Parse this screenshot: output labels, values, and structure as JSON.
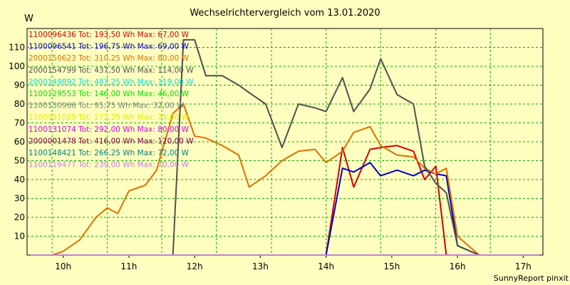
{
  "chart_data": {
    "type": "line",
    "title": "Wechselrichtervergleich vom 13.01.2020",
    "ylabel": "W",
    "footer": "SunnyReport pinxit",
    "grid": true,
    "legend_position": "top-left",
    "xlim": [
      9.45,
      17.3
    ],
    "ylim": [
      0,
      120
    ],
    "x_ticks": [
      {
        "v": 10,
        "label": "10h"
      },
      {
        "v": 11,
        "label": "11h"
      },
      {
        "v": 12,
        "label": "12h"
      },
      {
        "v": 13,
        "label": "13h"
      },
      {
        "v": 14,
        "label": "14h"
      },
      {
        "v": 15,
        "label": "15h"
      },
      {
        "v": 16,
        "label": "16h"
      },
      {
        "v": 17,
        "label": "17h"
      }
    ],
    "y_ticks": [
      10,
      20,
      30,
      40,
      50,
      60,
      70,
      80,
      90,
      100,
      110
    ],
    "x_grid": [
      9.83,
      10.67,
      11.5,
      12.33,
      13.17,
      14.0,
      14.83,
      15.67,
      16.5
    ],
    "x": [
      9.5,
      9.83,
      10.0,
      10.25,
      10.5,
      10.67,
      10.83,
      11.0,
      11.25,
      11.42,
      11.67,
      11.83,
      12.0,
      12.17,
      12.42,
      12.67,
      12.83,
      13.08,
      13.33,
      13.58,
      13.83,
      14.0,
      14.25,
      14.42,
      14.67,
      14.83,
      15.08,
      15.33,
      15.5,
      15.67,
      15.83,
      16.0,
      16.33,
      16.58,
      16.83,
      17.0,
      17.25
    ],
    "series": [
      {
        "name": "1100096436 Tot: 193,50 Wh Max: 67,00 W",
        "color": "#d40000",
        "values": [
          0,
          0,
          0,
          0,
          0,
          0,
          0,
          0,
          0,
          0,
          0,
          0,
          0,
          0,
          0,
          0,
          0,
          0,
          0,
          0,
          0,
          0,
          57,
          36,
          56,
          57,
          58,
          55,
          40,
          47,
          0,
          0,
          0,
          0,
          0,
          0,
          0
        ]
      },
      {
        "name": "1100096541 Tot: 196,75 Wh Max: 69,00 W",
        "color": "#0000c8",
        "values": [
          0,
          0,
          0,
          0,
          0,
          0,
          0,
          0,
          0,
          0,
          0,
          0,
          0,
          0,
          0,
          0,
          0,
          0,
          0,
          0,
          0,
          0,
          46,
          44,
          49,
          42,
          45,
          42,
          45,
          43,
          42,
          5,
          0,
          0,
          0,
          0,
          0
        ]
      },
      {
        "name": "2000150623 Tot: 310,25 Wh Max: 80,00 W",
        "color": "#e07000",
        "values": [
          0,
          0,
          2,
          8,
          20,
          25,
          22,
          34,
          37,
          45,
          75,
          80,
          63,
          62,
          58,
          53,
          36,
          42,
          50,
          55,
          56,
          49,
          55,
          65,
          68,
          58,
          53,
          52,
          46,
          43,
          46,
          10,
          0,
          0,
          0,
          0,
          0
        ]
      },
      {
        "name": "2000154799 Tot: 437,50 Wh Max: 114,00 W",
        "color": "#505050",
        "values": [
          0,
          0,
          0,
          0,
          0,
          0,
          0,
          0,
          0,
          0,
          0,
          114,
          114,
          95,
          95,
          90,
          86,
          80,
          57,
          80,
          78,
          76,
          94,
          76,
          88,
          104,
          85,
          80,
          47,
          38,
          33,
          5,
          0,
          0,
          0,
          0,
          0
        ]
      },
      {
        "name": "2000149892 Tot: 487,25 Wh Max: 119,00 W",
        "color": "#00e0e0",
        "values": [
          0,
          0,
          0,
          0,
          0,
          0,
          0,
          0,
          0,
          0,
          0,
          0,
          0,
          0,
          0,
          0,
          0,
          0,
          0,
          0,
          0,
          0,
          0,
          0,
          0,
          0,
          0,
          0,
          0,
          0,
          0,
          0,
          0,
          0,
          0,
          0,
          0
        ]
      },
      {
        "name": "1100129553 Tot: 146,00 Wh Max: 46,00 W",
        "color": "#00e000",
        "values": [
          0,
          0,
          0,
          0,
          0,
          0,
          0,
          0,
          0,
          0,
          0,
          0,
          0,
          0,
          0,
          0,
          0,
          0,
          0,
          0,
          0,
          0,
          0,
          0,
          0,
          0,
          0,
          0,
          0,
          0,
          0,
          0,
          0,
          0,
          0,
          0,
          0
        ]
      },
      {
        "name": "1100130966 Tot: 95,75 Wh Max: 32,00 W",
        "color": "#808080",
        "values": [
          0,
          0,
          0,
          0,
          0,
          0,
          0,
          0,
          0,
          0,
          0,
          0,
          0,
          0,
          0,
          0,
          0,
          0,
          0,
          0,
          0,
          0,
          0,
          0,
          0,
          0,
          0,
          0,
          0,
          0,
          0,
          0,
          0,
          0,
          0,
          0,
          0
        ]
      },
      {
        "name": "1100131025 Tot: 272,25 Wh Max: 75,00 W",
        "color": "#e8e800",
        "values": [
          0,
          0,
          0,
          0,
          0,
          0,
          0,
          0,
          0,
          0,
          0,
          0,
          0,
          0,
          0,
          0,
          0,
          0,
          0,
          0,
          0,
          0,
          0,
          0,
          0,
          0,
          0,
          0,
          0,
          0,
          0,
          0,
          0,
          0,
          0,
          0,
          0
        ]
      },
      {
        "name": "1100131074 Tot: 292,00 Wh Max: 80,00 W",
        "color": "#e000e0",
        "values": [
          0,
          0,
          0,
          0,
          0,
          0,
          0,
          0,
          0,
          0,
          0,
          0,
          0,
          0,
          0,
          0,
          0,
          0,
          0,
          0,
          0,
          0,
          0,
          0,
          0,
          0,
          0,
          0,
          0,
          0,
          0,
          0,
          0,
          0,
          0,
          0,
          0
        ]
      },
      {
        "name": "2000001478 Tot: 416,00 Wh Max: 120,00 W",
        "color": "#800040",
        "values": [
          0,
          0,
          0,
          0,
          0,
          0,
          0,
          0,
          0,
          0,
          0,
          0,
          0,
          0,
          0,
          0,
          0,
          0,
          0,
          0,
          0,
          0,
          0,
          0,
          0,
          0,
          0,
          0,
          0,
          0,
          0,
          0,
          0,
          0,
          0,
          0,
          0
        ]
      },
      {
        "name": "1100148421 Tot: 266,25 Wh Max: 72,00 W",
        "color": "#008080",
        "values": [
          0,
          0,
          0,
          0,
          0,
          0,
          0,
          0,
          0,
          0,
          0,
          0,
          0,
          0,
          0,
          0,
          0,
          0,
          0,
          0,
          0,
          0,
          0,
          0,
          0,
          0,
          0,
          0,
          0,
          0,
          0,
          0,
          0,
          0,
          0,
          0,
          0
        ]
      },
      {
        "name": "1100119477 Tot: 239,00 Wh Max: 70,00 W",
        "color": "#c080e0",
        "values": [
          0,
          0,
          0,
          0,
          0,
          0,
          0,
          0,
          0,
          0,
          0,
          0,
          0,
          0,
          0,
          0,
          0,
          0,
          0,
          0,
          0,
          0,
          0,
          0,
          0,
          0,
          0,
          0,
          0,
          0,
          0,
          0,
          0,
          0,
          0,
          0,
          0
        ]
      }
    ]
  }
}
